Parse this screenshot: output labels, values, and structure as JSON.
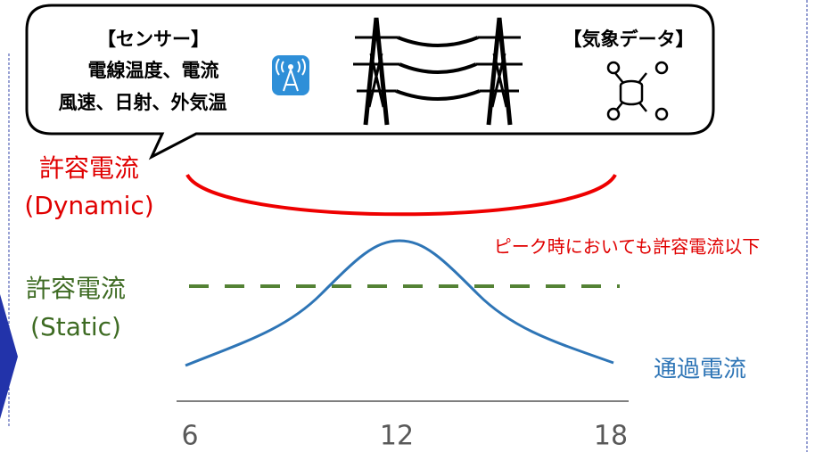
{
  "bubble": {
    "sensor": {
      "title": "【センサー】",
      "lines": [
        "電線温度、電流",
        "風速、日射、外気温"
      ]
    },
    "weather": "【気象データ】"
  },
  "labels": {
    "dynamic": [
      "許容電流",
      "(Dynamic)"
    ],
    "static": [
      "許容電流",
      "(Static)"
    ],
    "current": "通過電流",
    "note": "ピーク時においても許容電流以下"
  },
  "axis": {
    "ticks": [
      "6",
      "12",
      "18"
    ]
  }
}
